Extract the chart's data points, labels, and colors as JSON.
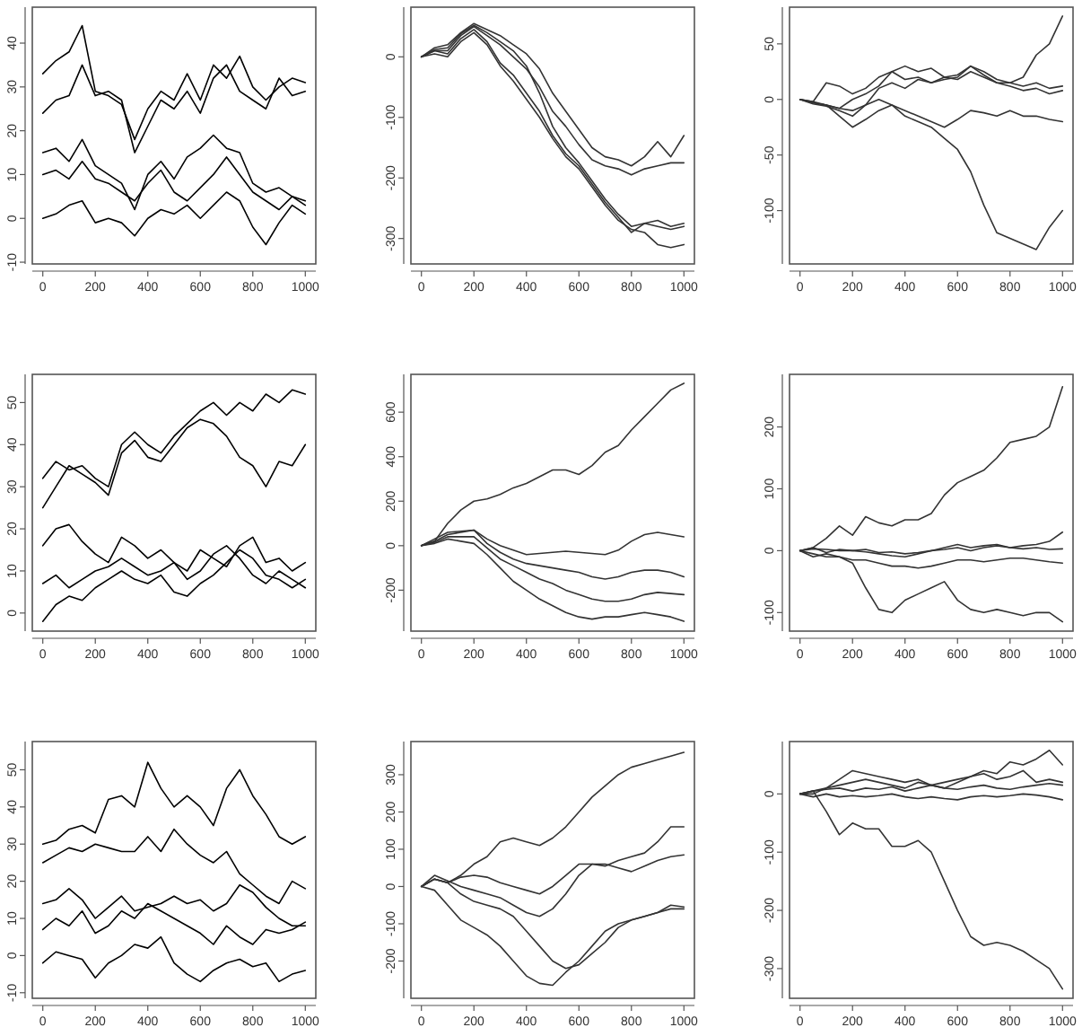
{
  "chart_data": [
    {
      "type": "line",
      "x": [
        0,
        50,
        100,
        150,
        200,
        250,
        300,
        350,
        400,
        450,
        500,
        550,
        600,
        650,
        700,
        750,
        800,
        850,
        900,
        950,
        1000
      ],
      "xlim": [
        -40,
        1040
      ],
      "xticks": [
        0,
        200,
        400,
        600,
        800,
        1000
      ],
      "ylim": [
        -10.4,
        48.2
      ],
      "yticks": [
        -10,
        0,
        10,
        20,
        30,
        40
      ],
      "series": [
        {
          "color": "#000000",
          "values": [
            33,
            36,
            38,
            44,
            29,
            28,
            26,
            18,
            25,
            29,
            27,
            33,
            27,
            35,
            32,
            37,
            30,
            27,
            30,
            32,
            31
          ]
        },
        {
          "color": "#000000",
          "values": [
            24,
            27,
            28,
            35,
            28,
            29,
            27,
            15,
            21,
            27,
            25,
            29,
            24,
            32,
            35,
            29,
            27,
            25,
            32,
            28,
            29
          ]
        },
        {
          "color": "#000000",
          "values": [
            15,
            16,
            13,
            18,
            12,
            10,
            8,
            2,
            10,
            13,
            9,
            14,
            16,
            19,
            16,
            15,
            8,
            6,
            7,
            5,
            4
          ]
        },
        {
          "color": "#000000",
          "values": [
            10,
            11,
            9,
            13,
            9,
            8,
            6,
            4,
            8,
            11,
            6,
            4,
            7,
            10,
            14,
            10,
            6,
            4,
            2,
            5,
            3
          ]
        },
        {
          "color": "#000000",
          "values": [
            0,
            1,
            3,
            4,
            -1,
            0,
            -1,
            -4,
            0,
            2,
            1,
            3,
            0,
            3,
            6,
            4,
            -2,
            -6,
            -1,
            3,
            1
          ]
        }
      ]
    },
    {
      "type": "line",
      "x": [
        0,
        50,
        100,
        150,
        200,
        250,
        300,
        350,
        400,
        450,
        500,
        550,
        600,
        650,
        700,
        750,
        800,
        850,
        900,
        950,
        1000
      ],
      "xlim": [
        -40,
        1040
      ],
      "xticks": [
        0,
        200,
        400,
        600,
        800,
        1000
      ],
      "ylim": [
        -342,
        82
      ],
      "yticks": [
        -300,
        -200,
        -100,
        0
      ],
      "series": [
        {
          "color": "#333333",
          "values": [
            0,
            15,
            20,
            40,
            55,
            45,
            35,
            20,
            5,
            -20,
            -60,
            -90,
            -120,
            -150,
            -165,
            -170,
            -180,
            -165,
            -140,
            -165,
            -130
          ]
        },
        {
          "color": "#333333",
          "values": [
            0,
            10,
            10,
            35,
            50,
            35,
            20,
            0,
            -20,
            -50,
            -90,
            -115,
            -145,
            -170,
            -180,
            -185,
            -195,
            -185,
            -180,
            -175,
            -175
          ]
        },
        {
          "color": "#333333",
          "values": [
            0,
            10,
            5,
            30,
            45,
            25,
            -10,
            -30,
            -60,
            -90,
            -130,
            -160,
            -180,
            -210,
            -240,
            -265,
            -290,
            -275,
            -270,
            -280,
            -275
          ]
        },
        {
          "color": "#333333",
          "values": [
            0,
            5,
            0,
            25,
            40,
            20,
            -15,
            -40,
            -70,
            -100,
            -135,
            -165,
            -185,
            -215,
            -245,
            -270,
            -285,
            -290,
            -310,
            -315,
            -310
          ]
        },
        {
          "color": "#333333",
          "values": [
            0,
            12,
            15,
            38,
            52,
            40,
            25,
            10,
            -15,
            -60,
            -115,
            -150,
            -175,
            -205,
            -235,
            -260,
            -280,
            -275,
            -280,
            -285,
            -280
          ]
        }
      ]
    },
    {
      "type": "line",
      "x": [
        0,
        50,
        100,
        150,
        200,
        250,
        300,
        350,
        400,
        450,
        500,
        550,
        600,
        650,
        700,
        750,
        800,
        850,
        900,
        950,
        1000
      ],
      "xlim": [
        -40,
        1040
      ],
      "xticks": [
        0,
        200,
        400,
        600,
        800,
        1000
      ],
      "ylim": [
        -148,
        83
      ],
      "yticks": [
        -100,
        -50,
        0,
        50
      ],
      "series": [
        {
          "color": "#333333",
          "values": [
            0,
            -2,
            15,
            12,
            5,
            10,
            20,
            25,
            18,
            20,
            15,
            18,
            20,
            30,
            22,
            15,
            15,
            20,
            40,
            50,
            75
          ]
        },
        {
          "color": "#333333",
          "values": [
            0,
            -3,
            -5,
            -8,
            0,
            5,
            12,
            25,
            30,
            25,
            28,
            20,
            22,
            30,
            25,
            18,
            15,
            12,
            15,
            10,
            12
          ]
        },
        {
          "color": "#333333",
          "values": [
            0,
            -4,
            -6,
            -10,
            -15,
            -5,
            10,
            15,
            10,
            18,
            15,
            20,
            18,
            25,
            20,
            15,
            12,
            8,
            10,
            5,
            8
          ]
        },
        {
          "color": "#333333",
          "values": [
            0,
            -2,
            -5,
            -15,
            -25,
            -18,
            -10,
            -5,
            -10,
            -15,
            -20,
            -25,
            -18,
            -10,
            -12,
            -15,
            -10,
            -15,
            -15,
            -18,
            -20
          ]
        },
        {
          "color": "#333333",
          "values": [
            0,
            -3,
            -5,
            -8,
            -10,
            -5,
            0,
            -5,
            -15,
            -20,
            -25,
            -35,
            -45,
            -65,
            -95,
            -120,
            -125,
            -130,
            -135,
            -115,
            -100
          ]
        }
      ]
    },
    {
      "type": "line",
      "x": [
        0,
        50,
        100,
        150,
        200,
        250,
        300,
        350,
        400,
        450,
        500,
        550,
        600,
        650,
        700,
        750,
        800,
        850,
        900,
        950,
        1000
      ],
      "xlim": [
        -40,
        1040
      ],
      "xticks": [
        0,
        200,
        400,
        600,
        800,
        1000
      ],
      "ylim": [
        -4.3,
        56.7
      ],
      "yticks": [
        0,
        10,
        20,
        30,
        40,
        50
      ],
      "series": [
        {
          "color": "#000000",
          "values": [
            32,
            36,
            34,
            35,
            32,
            30,
            40,
            43,
            40,
            38,
            42,
            45,
            48,
            50,
            47,
            50,
            48,
            52,
            50,
            53,
            52
          ]
        },
        {
          "color": "#000000",
          "values": [
            25,
            30,
            35,
            33,
            31,
            28,
            38,
            41,
            37,
            36,
            40,
            44,
            46,
            45,
            42,
            37,
            35,
            30,
            36,
            35,
            40
          ]
        },
        {
          "color": "#000000",
          "values": [
            16,
            20,
            21,
            17,
            14,
            12,
            18,
            16,
            13,
            15,
            12,
            10,
            15,
            13,
            11,
            16,
            18,
            12,
            13,
            10,
            12
          ]
        },
        {
          "color": "#000000",
          "values": [
            7,
            9,
            6,
            8,
            10,
            11,
            13,
            11,
            9,
            10,
            12,
            8,
            10,
            14,
            16,
            13,
            9,
            7,
            10,
            8,
            6
          ]
        },
        {
          "color": "#000000",
          "values": [
            -2,
            2,
            4,
            3,
            6,
            8,
            10,
            8,
            7,
            9,
            5,
            4,
            7,
            9,
            12,
            15,
            13,
            9,
            8,
            6,
            8
          ]
        }
      ]
    },
    {
      "type": "line",
      "x": [
        0,
        50,
        100,
        150,
        200,
        250,
        300,
        350,
        400,
        450,
        500,
        550,
        600,
        650,
        700,
        750,
        800,
        850,
        900,
        950,
        1000
      ],
      "xlim": [
        -40,
        1040
      ],
      "xticks": [
        0,
        200,
        400,
        600,
        800,
        1000
      ],
      "ylim": [
        -384,
        770
      ],
      "yticks": [
        -200,
        0,
        200,
        400,
        600
      ],
      "series": [
        {
          "color": "#333333",
          "values": [
            0,
            20,
            100,
            160,
            200,
            210,
            230,
            260,
            280,
            310,
            340,
            340,
            320,
            360,
            420,
            450,
            520,
            580,
            640,
            700,
            730
          ]
        },
        {
          "color": "#333333",
          "values": [
            0,
            30,
            60,
            65,
            70,
            30,
            0,
            -20,
            -40,
            -35,
            -30,
            -25,
            -30,
            -35,
            -40,
            -20,
            20,
            50,
            60,
            50,
            40
          ]
        },
        {
          "color": "#333333",
          "values": [
            0,
            20,
            50,
            60,
            70,
            10,
            -30,
            -60,
            -80,
            -90,
            -100,
            -110,
            -120,
            -140,
            -150,
            -140,
            -120,
            -110,
            -110,
            -120,
            -140
          ]
        },
        {
          "color": "#333333",
          "values": [
            0,
            15,
            40,
            40,
            40,
            -10,
            -60,
            -90,
            -120,
            -150,
            -170,
            -200,
            -220,
            -240,
            -250,
            -250,
            -240,
            -220,
            -210,
            -215,
            -220
          ]
        },
        {
          "color": "#333333",
          "values": [
            0,
            10,
            30,
            20,
            10,
            -40,
            -100,
            -160,
            -200,
            -240,
            -270,
            -300,
            -320,
            -330,
            -320,
            -320,
            -310,
            -300,
            -310,
            -320,
            -340
          ]
        }
      ]
    },
    {
      "type": "line",
      "x": [
        0,
        50,
        100,
        150,
        200,
        250,
        300,
        350,
        400,
        450,
        500,
        550,
        600,
        650,
        700,
        750,
        800,
        850,
        900,
        950,
        1000
      ],
      "xlim": [
        -40,
        1040
      ],
      "xticks": [
        0,
        200,
        400,
        600,
        800,
        1000
      ],
      "ylim": [
        -130,
        285
      ],
      "yticks": [
        -100,
        0,
        100,
        200
      ],
      "series": [
        {
          "color": "#333333",
          "values": [
            0,
            5,
            20,
            40,
            25,
            55,
            45,
            40,
            50,
            50,
            60,
            90,
            110,
            120,
            130,
            150,
            175,
            180,
            185,
            200,
            265
          ]
        },
        {
          "color": "#333333",
          "values": [
            0,
            5,
            -3,
            2,
            0,
            -2,
            -5,
            -8,
            -10,
            -5,
            0,
            5,
            10,
            5,
            8,
            10,
            5,
            8,
            10,
            15,
            30
          ]
        },
        {
          "color": "#333333",
          "values": [
            0,
            3,
            2,
            0,
            0,
            2,
            -3,
            -2,
            -5,
            -3,
            0,
            2,
            5,
            0,
            5,
            8,
            5,
            3,
            5,
            2,
            3
          ]
        },
        {
          "color": "#333333",
          "values": [
            0,
            -5,
            -10,
            -10,
            -15,
            -15,
            -20,
            -25,
            -25,
            -28,
            -25,
            -20,
            -15,
            -15,
            -18,
            -15,
            -12,
            -12,
            -15,
            -18,
            -20
          ]
        },
        {
          "color": "#333333",
          "values": [
            0,
            -10,
            -5,
            -10,
            -20,
            -60,
            -95,
            -100,
            -80,
            -70,
            -60,
            -50,
            -80,
            -95,
            -100,
            -95,
            -100,
            -105,
            -100,
            -100,
            -115
          ]
        }
      ]
    },
    {
      "type": "line",
      "x": [
        0,
        50,
        100,
        150,
        200,
        250,
        300,
        350,
        400,
        450,
        500,
        550,
        600,
        650,
        700,
        750,
        800,
        850,
        900,
        950,
        1000
      ],
      "xlim": [
        -40,
        1040
      ],
      "xticks": [
        0,
        200,
        400,
        600,
        800,
        1000
      ],
      "ylim": [
        -11.5,
        57.6
      ],
      "yticks": [
        -10,
        0,
        10,
        20,
        30,
        40,
        50
      ],
      "series": [
        {
          "color": "#000000",
          "values": [
            30,
            31,
            34,
            35,
            33,
            42,
            43,
            40,
            52,
            45,
            40,
            43,
            40,
            35,
            45,
            50,
            43,
            38,
            32,
            30,
            32
          ]
        },
        {
          "color": "#000000",
          "values": [
            25,
            27,
            29,
            28,
            30,
            29,
            28,
            28,
            32,
            28,
            34,
            30,
            27,
            25,
            28,
            22,
            19,
            16,
            14,
            20,
            18
          ]
        },
        {
          "color": "#000000",
          "values": [
            14,
            15,
            18,
            15,
            10,
            13,
            16,
            12,
            13,
            14,
            16,
            14,
            15,
            12,
            14,
            19,
            17,
            13,
            10,
            8,
            8
          ]
        },
        {
          "color": "#000000",
          "values": [
            7,
            10,
            8,
            12,
            6,
            8,
            12,
            10,
            14,
            12,
            10,
            8,
            6,
            3,
            8,
            5,
            3,
            7,
            6,
            7,
            9
          ]
        },
        {
          "color": "#000000",
          "values": [
            -2,
            1,
            0,
            -1,
            -6,
            -2,
            0,
            3,
            2,
            5,
            -2,
            -5,
            -7,
            -4,
            -2,
            -1,
            -3,
            -2,
            -7,
            -5,
            -4
          ]
        }
      ]
    },
    {
      "type": "line",
      "x": [
        0,
        50,
        100,
        150,
        200,
        250,
        300,
        350,
        400,
        450,
        500,
        550,
        600,
        650,
        700,
        750,
        800,
        850,
        900,
        950,
        1000
      ],
      "xlim": [
        -40,
        1040
      ],
      "xticks": [
        0,
        200,
        400,
        600,
        800,
        1000
      ],
      "ylim": [
        -300,
        389
      ],
      "yticks": [
        -200,
        -100,
        0,
        100,
        200,
        300
      ],
      "series": [
        {
          "color": "#333333",
          "values": [
            0,
            20,
            10,
            30,
            60,
            80,
            120,
            130,
            120,
            110,
            130,
            160,
            200,
            240,
            270,
            300,
            320,
            330,
            340,
            350,
            360
          ]
        },
        {
          "color": "#333333",
          "values": [
            0,
            20,
            10,
            25,
            30,
            25,
            10,
            0,
            -10,
            -20,
            0,
            30,
            60,
            60,
            55,
            70,
            80,
            90,
            120,
            160,
            160
          ]
        },
        {
          "color": "#333333",
          "values": [
            0,
            30,
            15,
            0,
            -10,
            -20,
            -30,
            -50,
            -70,
            -80,
            -60,
            -20,
            30,
            60,
            60,
            50,
            40,
            55,
            70,
            80,
            85
          ]
        },
        {
          "color": "#333333",
          "values": [
            0,
            20,
            10,
            -20,
            -40,
            -50,
            -60,
            -80,
            -120,
            -160,
            -200,
            -220,
            -210,
            -180,
            -150,
            -110,
            -90,
            -80,
            -70,
            -50,
            -55
          ]
        },
        {
          "color": "#333333",
          "values": [
            0,
            -10,
            -50,
            -90,
            -110,
            -130,
            -160,
            -200,
            -240,
            -260,
            -265,
            -230,
            -200,
            -160,
            -120,
            -100,
            -90,
            -80,
            -70,
            -60,
            -60
          ]
        }
      ]
    },
    {
      "type": "line",
      "x": [
        0,
        50,
        100,
        150,
        200,
        250,
        300,
        350,
        400,
        450,
        500,
        550,
        600,
        650,
        700,
        750,
        800,
        850,
        900,
        950,
        1000
      ],
      "xlim": [
        -40,
        1040
      ],
      "xticks": [
        0,
        200,
        400,
        600,
        800,
        1000
      ],
      "ylim": [
        -351,
        90
      ],
      "yticks": [
        -300,
        -200,
        -100,
        0
      ],
      "series": [
        {
          "color": "#333333",
          "values": [
            0,
            0,
            10,
            25,
            40,
            35,
            30,
            25,
            20,
            25,
            15,
            20,
            25,
            30,
            40,
            35,
            55,
            50,
            60,
            75,
            50
          ]
        },
        {
          "color": "#333333",
          "values": [
            0,
            5,
            10,
            15,
            20,
            25,
            20,
            15,
            10,
            20,
            15,
            10,
            20,
            30,
            35,
            25,
            30,
            40,
            20,
            25,
            20
          ]
        },
        {
          "color": "#333333",
          "values": [
            0,
            5,
            8,
            10,
            5,
            10,
            8,
            12,
            5,
            10,
            15,
            10,
            8,
            12,
            15,
            10,
            8,
            12,
            15,
            18,
            15
          ]
        },
        {
          "color": "#333333",
          "values": [
            0,
            -5,
            0,
            -5,
            -3,
            -5,
            -3,
            0,
            -5,
            -8,
            -5,
            -8,
            -10,
            -5,
            -3,
            -5,
            -3,
            0,
            -2,
            -5,
            -10
          ]
        },
        {
          "color": "#333333",
          "values": [
            0,
            5,
            -30,
            -70,
            -50,
            -60,
            -60,
            -90,
            -90,
            -80,
            -100,
            -150,
            -200,
            -245,
            -260,
            -255,
            -260,
            -270,
            -285,
            -300,
            -335
          ]
        }
      ]
    }
  ]
}
